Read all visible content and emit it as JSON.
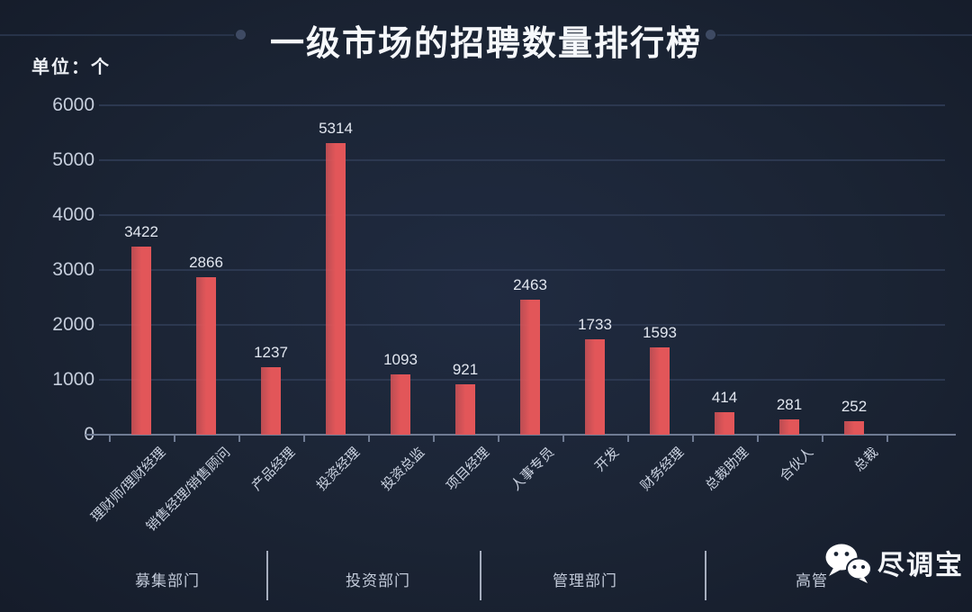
{
  "title": "一级市场的招聘数量排行榜",
  "unit_label": "单位：个",
  "colors": {
    "bar": "#e25659",
    "background": "#1b2434",
    "gridline": "#2c3850",
    "axis": "#6f7b93",
    "title_text": "#f6f8fb"
  },
  "chart_data": {
    "type": "bar",
    "title": "一级市场的招聘数量排行榜",
    "unit": "个",
    "categories": [
      "理财师/理财经理",
      "销售经理/销售顾问",
      "产品经理",
      "投资经理",
      "投资总监",
      "项目经理",
      "人事专员",
      "开发",
      "财务经理",
      "总裁助理",
      "合伙人",
      "总裁"
    ],
    "values": [
      3422,
      2866,
      1237,
      5314,
      1093,
      921,
      2463,
      1733,
      1593,
      414,
      281,
      252
    ],
    "ylim": [
      0,
      6000
    ],
    "yticks": [
      0,
      1000,
      2000,
      3000,
      4000,
      5000,
      6000
    ],
    "grid": true,
    "legend_position": "none",
    "groups": [
      {
        "label": "募集部门",
        "span": [
          0,
          1
        ]
      },
      {
        "label": "投资部门",
        "span": [
          2,
          5
        ]
      },
      {
        "label": "管理部门",
        "span": [
          6,
          8
        ]
      },
      {
        "label": "高管",
        "span": [
          9,
          11
        ]
      }
    ]
  },
  "footer": {
    "group_labels": [
      "募集部门",
      "投资部门",
      "管理部门",
      "高管"
    ],
    "logo_icon": "wechat-icon",
    "logo_text": "尽调宝"
  }
}
